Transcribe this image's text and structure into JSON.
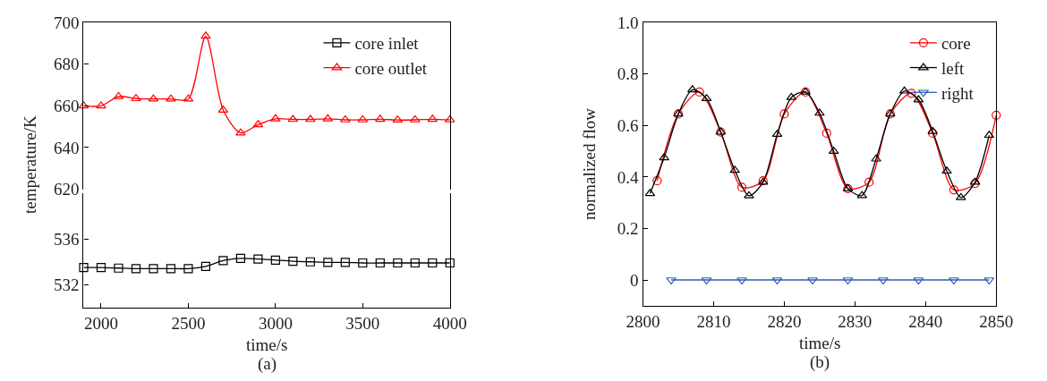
{
  "chart_data": [
    {
      "type": "line",
      "ylabel": "temperature/K",
      "xlim": [
        1900,
        4000
      ],
      "xticks": [
        2000,
        2500,
        3000,
        3500,
        4000
      ],
      "ylim": [
        620,
        700
      ],
      "yticks": [
        620,
        640,
        660,
        680,
        700
      ],
      "tick_labels": "y",
      "legend": "top right",
      "line_style": "solid",
      "x": [
        1900,
        2000,
        2100,
        2200,
        2300,
        2400,
        2500,
        2600,
        2700,
        2800,
        2900,
        3000,
        3100,
        3200,
        3300,
        3400,
        3500,
        3600,
        3700,
        3800,
        3900,
        4000
      ],
      "series": [
        {
          "name": "core outlet",
          "color": "#ff0000",
          "marker": "triangle",
          "values": [
            660,
            660,
            664.5,
            663.5,
            663.3,
            663.3,
            663.3,
            693.5,
            658,
            647,
            651,
            653.8,
            653.5,
            653.5,
            653.8,
            653.3,
            653.3,
            653.6,
            653.2,
            653.3,
            653.6,
            653.3
          ]
        }
      ]
    },
    {
      "type": "line",
      "xlabel": "time/s",
      "annotations": [
        "(a)"
      ],
      "xlim": [
        1900,
        4000
      ],
      "xticks": [
        2000,
        2500,
        3000,
        3500,
        4000
      ],
      "ylim": [
        530,
        540
      ],
      "yticks": [
        532,
        536
      ],
      "line_style": "solid",
      "x": [
        1900,
        2000,
        2100,
        2200,
        2300,
        2400,
        2500,
        2600,
        2700,
        2800,
        2900,
        3000,
        3100,
        3200,
        3300,
        3400,
        3500,
        3600,
        3700,
        3800,
        3900,
        4000
      ],
      "series": [
        {
          "name": "core inlet",
          "color": "#000000",
          "marker": "square",
          "values": [
            533.5,
            533.5,
            533.45,
            533.4,
            533.4,
            533.4,
            533.4,
            533.6,
            534.1,
            534.3,
            534.25,
            534.15,
            534.05,
            534.0,
            533.95,
            533.95,
            533.9,
            533.9,
            533.9,
            533.9,
            533.9,
            533.9
          ]
        }
      ]
    },
    {
      "type": "line",
      "xlabel": "time/s",
      "ylabel": "normalized flow",
      "annotations": [
        "(b)"
      ],
      "xlim": [
        2800,
        2850
      ],
      "xticks": [
        2800,
        2810,
        2820,
        2830,
        2840,
        2850
      ],
      "ylim": [
        -0.1,
        1.0
      ],
      "yticks": [
        0,
        0.2,
        0.4,
        0.6,
        0.8,
        {
          "value": 1.0,
          "label": "1.0"
        }
      ],
      "legend": "top right",
      "line_style": "solid",
      "series": [
        {
          "name": "core",
          "color": "#ff0000",
          "marker": "circle",
          "x": [
            2802,
            2805,
            2808,
            2811,
            2814,
            2817,
            2820,
            2823,
            2826,
            2829,
            2832,
            2835,
            2838,
            2841,
            2844,
            2847,
            2850
          ],
          "values": [
            0.385,
            0.645,
            0.73,
            0.575,
            0.36,
            0.385,
            0.645,
            0.73,
            0.57,
            0.355,
            0.38,
            0.645,
            0.725,
            0.57,
            0.35,
            0.375,
            0.64
          ]
        },
        {
          "name": "left",
          "color": "#000000",
          "marker": "triangle",
          "x": [
            2801,
            2803,
            2805,
            2807,
            2809,
            2811,
            2813,
            2815,
            2817,
            2819,
            2821,
            2823,
            2825,
            2827,
            2829,
            2831,
            2833,
            2835,
            2837,
            2839,
            2841,
            2843,
            2845,
            2847,
            2849
          ],
          "values": [
            0.336,
            0.475,
            0.645,
            0.739,
            0.705,
            0.575,
            0.426,
            0.327,
            0.38,
            0.566,
            0.709,
            0.73,
            0.648,
            0.5,
            0.355,
            0.328,
            0.47,
            0.645,
            0.734,
            0.7,
            0.577,
            0.423,
            0.32,
            0.38,
            0.562
          ]
        },
        {
          "name": "right",
          "color": "#2e5cb8",
          "marker": "triangle-down",
          "x": [
            2804,
            2809,
            2814,
            2819,
            2824,
            2829,
            2834,
            2839,
            2844,
            2849
          ],
          "values": [
            0,
            0,
            0,
            0,
            0,
            0,
            0,
            0,
            0,
            0
          ]
        }
      ]
    }
  ]
}
